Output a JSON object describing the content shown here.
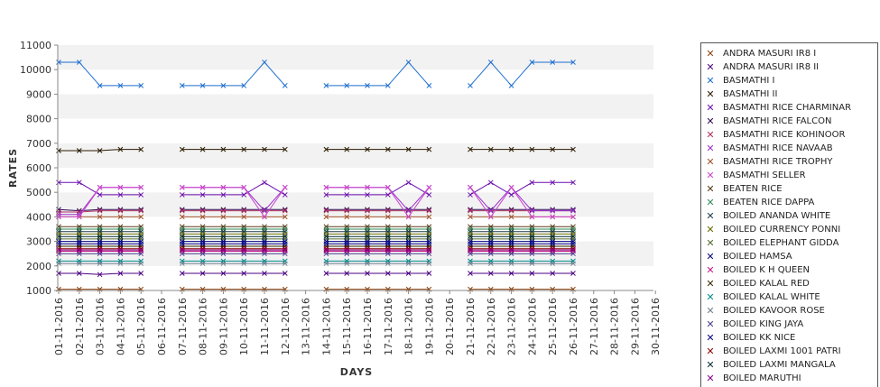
{
  "chart_data": {
    "type": "line",
    "xlabel": "DAYS",
    "ylabel": "RATES",
    "ylim": [
      1000,
      11000
    ],
    "yticks": [
      1000,
      2000,
      3000,
      4000,
      5000,
      6000,
      7000,
      8000,
      9000,
      10000,
      11000
    ],
    "grid": "alternating horizontal bands",
    "legend_placement": "right",
    "categories": [
      "01-11-2016",
      "02-11-2016",
      "03-11-2016",
      "04-11-2016",
      "05-11-2016",
      "06-11-2016",
      "07-11-2016",
      "08-11-2016",
      "09-11-2016",
      "10-11-2016",
      "11-11-2016",
      "12-11-2016",
      "13-11-2016",
      "14-11-2016",
      "15-11-2016",
      "16-11-2016",
      "17-11-2016",
      "18-11-2016",
      "19-11-2016",
      "20-11-2016",
      "21-11-2016",
      "22-11-2016",
      "23-11-2016",
      "24-11-2016",
      "25-11-2016",
      "26-11-2016",
      "27-11-2016",
      "28-11-2016",
      "29-11-2016",
      "30-11-2016"
    ],
    "series": [
      {
        "name": "ANDRA MASURI IR8 I",
        "color": "#8b4513",
        "values": [
          1050,
          1050,
          1050,
          1050,
          1050,
          null,
          1050,
          1050,
          1050,
          1050,
          1050,
          1050,
          null,
          1050,
          1050,
          1050,
          1050,
          1050,
          1050,
          null,
          1050,
          1050,
          1050,
          1050,
          1050,
          1050,
          null,
          null,
          null,
          null
        ]
      },
      {
        "name": "ANDRA MASURI IR8 II",
        "color": "#4b0082",
        "values": [
          1700,
          1700,
          1650,
          1700,
          1700,
          null,
          1700,
          1700,
          1700,
          1700,
          1700,
          1700,
          null,
          1700,
          1700,
          1700,
          1700,
          1700,
          1700,
          null,
          1700,
          1700,
          1700,
          1700,
          1700,
          1700,
          null,
          null,
          null,
          null
        ]
      },
      {
        "name": "BASMATHI I",
        "color": "#1f6fd0",
        "values": [
          10300,
          10300,
          9350,
          9350,
          9350,
          null,
          9350,
          9350,
          9350,
          9350,
          10300,
          9350,
          null,
          9350,
          9350,
          9350,
          9350,
          10300,
          9350,
          null,
          9350,
          10300,
          9350,
          10300,
          10300,
          10300,
          null,
          null,
          null,
          null
        ]
      },
      {
        "name": "BASMATHI II",
        "color": "#2a1a00",
        "values": [
          6700,
          6700,
          6700,
          6750,
          6750,
          null,
          6750,
          6750,
          6750,
          6750,
          6750,
          6750,
          null,
          6750,
          6750,
          6750,
          6750,
          6750,
          6750,
          null,
          6750,
          6750,
          6750,
          6750,
          6750,
          6750,
          null,
          null,
          null,
          null
        ]
      },
      {
        "name": "BASMATHI RICE CHARMINAR",
        "color": "#6a0dad",
        "values": [
          5400,
          5400,
          4900,
          4900,
          4900,
          null,
          4900,
          4900,
          4900,
          4900,
          5400,
          4900,
          null,
          4900,
          4900,
          4900,
          4900,
          5400,
          4900,
          null,
          4900,
          5400,
          4900,
          5400,
          5400,
          5400,
          null,
          null,
          null,
          null
        ]
      },
      {
        "name": "BASMATHI RICE FALCON",
        "color": "#2e0854",
        "values": [
          4300,
          4250,
          4300,
          4300,
          4300,
          null,
          4300,
          4300,
          4300,
          4300,
          4300,
          4300,
          null,
          4300,
          4300,
          4300,
          4300,
          4300,
          4300,
          null,
          4300,
          4300,
          4300,
          4300,
          4300,
          4300,
          null,
          null,
          null,
          null
        ]
      },
      {
        "name": "BASMATHI RICE KOHINOOR",
        "color": "#b03060",
        "values": [
          4200,
          4200,
          4250,
          4250,
          4250,
          null,
          4250,
          4250,
          4250,
          4250,
          4250,
          4250,
          null,
          4250,
          4250,
          4250,
          4250,
          4250,
          4250,
          null,
          4250,
          4250,
          4250,
          4250,
          4250,
          4250,
          null,
          null,
          null,
          null
        ]
      },
      {
        "name": "BASMATHI RICE NAVAAB",
        "color": "#9932cc",
        "values": [
          4100,
          4100,
          5200,
          5200,
          5200,
          null,
          5200,
          5200,
          5200,
          5200,
          4250,
          5200,
          null,
          5200,
          5200,
          5200,
          5200,
          4250,
          5200,
          null,
          5200,
          4250,
          5200,
          4250,
          4250,
          4250,
          null,
          null,
          null,
          null
        ]
      },
      {
        "name": "BASMATHI RICE TROPHY",
        "color": "#a0522d",
        "values": [
          4000,
          4000,
          4000,
          4000,
          4000,
          null,
          4000,
          4000,
          4000,
          4000,
          4000,
          4000,
          null,
          4000,
          4000,
          4000,
          4000,
          4000,
          4000,
          null,
          4000,
          4000,
          4000,
          4000,
          4000,
          4000,
          null,
          null,
          null,
          null
        ]
      },
      {
        "name": "BASMATHI SELLER",
        "color": "#cc44cc",
        "values": [
          4000,
          4000,
          5200,
          5200,
          5200,
          null,
          5200,
          5200,
          5200,
          5200,
          4000,
          5200,
          null,
          5200,
          5200,
          5200,
          5200,
          4000,
          5200,
          null,
          5200,
          4000,
          5200,
          4000,
          4000,
          4000,
          null,
          null,
          null,
          null
        ]
      },
      {
        "name": "BEATEN RICE",
        "color": "#5b3a1a",
        "values": [
          3600,
          3600,
          3600,
          3600,
          3600,
          null,
          3600,
          3600,
          3600,
          3600,
          3600,
          3600,
          null,
          3600,
          3600,
          3600,
          3600,
          3600,
          3600,
          null,
          3600,
          3600,
          3600,
          3600,
          3600,
          3600,
          null,
          null,
          null,
          null
        ]
      },
      {
        "name": "BEATEN RICE DAPPA",
        "color": "#2e8b57",
        "values": [
          3500,
          3500,
          3500,
          3500,
          3500,
          null,
          3500,
          3500,
          3500,
          3500,
          3500,
          3500,
          null,
          3500,
          3500,
          3500,
          3500,
          3500,
          3500,
          null,
          3500,
          3500,
          3500,
          3500,
          3500,
          3500,
          null,
          null,
          null,
          null
        ]
      },
      {
        "name": "BOILED ANANDA WHITE",
        "color": "#1c3a4a",
        "values": [
          3400,
          3400,
          3400,
          3400,
          3400,
          null,
          3400,
          3400,
          3400,
          3400,
          3400,
          3400,
          null,
          3400,
          3400,
          3400,
          3400,
          3400,
          3400,
          null,
          3400,
          3400,
          3400,
          3400,
          3400,
          3400,
          null,
          null,
          null,
          null
        ]
      },
      {
        "name": "BOILED CURRENCY PONNI",
        "color": "#6b6b00",
        "values": [
          3300,
          3300,
          3300,
          3300,
          3300,
          null,
          3300,
          3300,
          3300,
          3300,
          3300,
          3300,
          null,
          3300,
          3300,
          3300,
          3300,
          3300,
          3300,
          null,
          3300,
          3300,
          3300,
          3300,
          3300,
          3300,
          null,
          null,
          null,
          null
        ]
      },
      {
        "name": "BOILED ELEPHANT GIDDA",
        "color": "#556b2f",
        "values": [
          3100,
          3100,
          3100,
          3100,
          3100,
          null,
          3100,
          3100,
          3100,
          3100,
          3100,
          3100,
          null,
          3100,
          3100,
          3100,
          3100,
          3100,
          3100,
          null,
          3100,
          3100,
          3100,
          3100,
          3100,
          3100,
          null,
          null,
          null,
          null
        ]
      },
      {
        "name": "BOILED HAMSA",
        "color": "#000080",
        "values": [
          3000,
          3000,
          3000,
          3000,
          3000,
          null,
          3000,
          3000,
          3000,
          3000,
          3000,
          3000,
          null,
          3000,
          3000,
          3000,
          3000,
          3000,
          3000,
          null,
          3000,
          3000,
          3000,
          3000,
          3000,
          3000,
          null,
          null,
          null,
          null
        ]
      },
      {
        "name": "BOILED K H QUEEN",
        "color": "#c71585",
        "values": [
          2600,
          2600,
          2600,
          2600,
          2600,
          null,
          2600,
          2600,
          2600,
          2600,
          2600,
          2600,
          null,
          2600,
          2600,
          2600,
          2600,
          2600,
          2600,
          null,
          2600,
          2600,
          2600,
          2600,
          2600,
          2600,
          null,
          null,
          null,
          null
        ]
      },
      {
        "name": "BOILED KALAL RED",
        "color": "#3a2a00",
        "values": [
          2800,
          2800,
          2800,
          2800,
          2800,
          null,
          2800,
          2800,
          2800,
          2800,
          2800,
          2800,
          null,
          2800,
          2800,
          2800,
          2800,
          2800,
          2800,
          null,
          2800,
          2800,
          2800,
          2800,
          2800,
          2800,
          null,
          null,
          null,
          null
        ]
      },
      {
        "name": "BOILED KALAL WHITE",
        "color": "#008b8b",
        "values": [
          2200,
          2200,
          2200,
          2200,
          2200,
          null,
          2200,
          2200,
          2200,
          2200,
          2200,
          2200,
          null,
          2200,
          2200,
          2200,
          2200,
          2200,
          2200,
          null,
          2200,
          2200,
          2200,
          2200,
          2200,
          2200,
          null,
          null,
          null,
          null
        ]
      },
      {
        "name": "BOILED KAVOOR ROSE",
        "color": "#708090",
        "values": [
          2100,
          2100,
          2100,
          2100,
          2100,
          null,
          2100,
          2100,
          2100,
          2100,
          2100,
          2100,
          null,
          2100,
          2100,
          2100,
          2100,
          2100,
          2100,
          null,
          2100,
          2100,
          2100,
          2100,
          2100,
          2100,
          null,
          null,
          null,
          null
        ]
      },
      {
        "name": "BOILED KING JAYA",
        "color": "#483d8b",
        "values": [
          2500,
          2500,
          2500,
          2500,
          2500,
          null,
          2500,
          2500,
          2500,
          2500,
          2500,
          2500,
          null,
          2500,
          2500,
          2500,
          2500,
          2500,
          2500,
          null,
          2500,
          2500,
          2500,
          2500,
          2500,
          2500,
          null,
          null,
          null,
          null
        ]
      },
      {
        "name": "BOILED KK NICE",
        "color": "#00008b",
        "values": [
          2900,
          2900,
          2900,
          2900,
          2900,
          null,
          2900,
          2900,
          2900,
          2900,
          2900,
          2900,
          null,
          2900,
          2900,
          2900,
          2900,
          2900,
          2900,
          null,
          2900,
          2900,
          2900,
          2900,
          2900,
          2900,
          null,
          null,
          null,
          null
        ]
      },
      {
        "name": "BOILED LAXMI 1001 PATRI",
        "color": "#8b0000",
        "values": [
          2700,
          2700,
          2700,
          2700,
          2700,
          null,
          2700,
          2700,
          2700,
          2700,
          2700,
          2700,
          null,
          2700,
          2700,
          2700,
          2700,
          2700,
          2700,
          null,
          2700,
          2700,
          2700,
          2700,
          2700,
          2700,
          null,
          null,
          null,
          null
        ]
      },
      {
        "name": "BOILED LAXMI MANGALA",
        "color": "#002b36",
        "values": [
          3200,
          3200,
          3200,
          3200,
          3200,
          null,
          3200,
          3200,
          3200,
          3200,
          3200,
          3200,
          null,
          3200,
          3200,
          3200,
          3200,
          3200,
          3200,
          null,
          3200,
          3200,
          3200,
          3200,
          3200,
          3200,
          null,
          null,
          null,
          null
        ]
      },
      {
        "name": "BOILED MARUTHI",
        "color": "#8b008b",
        "values": [
          2650,
          2650,
          2650,
          2650,
          2650,
          null,
          2650,
          2650,
          2650,
          2650,
          2650,
          2650,
          null,
          2650,
          2650,
          2650,
          2650,
          2650,
          2650,
          null,
          2650,
          2650,
          2650,
          2650,
          2650,
          2650,
          null,
          null,
          null,
          null
        ]
      }
    ]
  }
}
